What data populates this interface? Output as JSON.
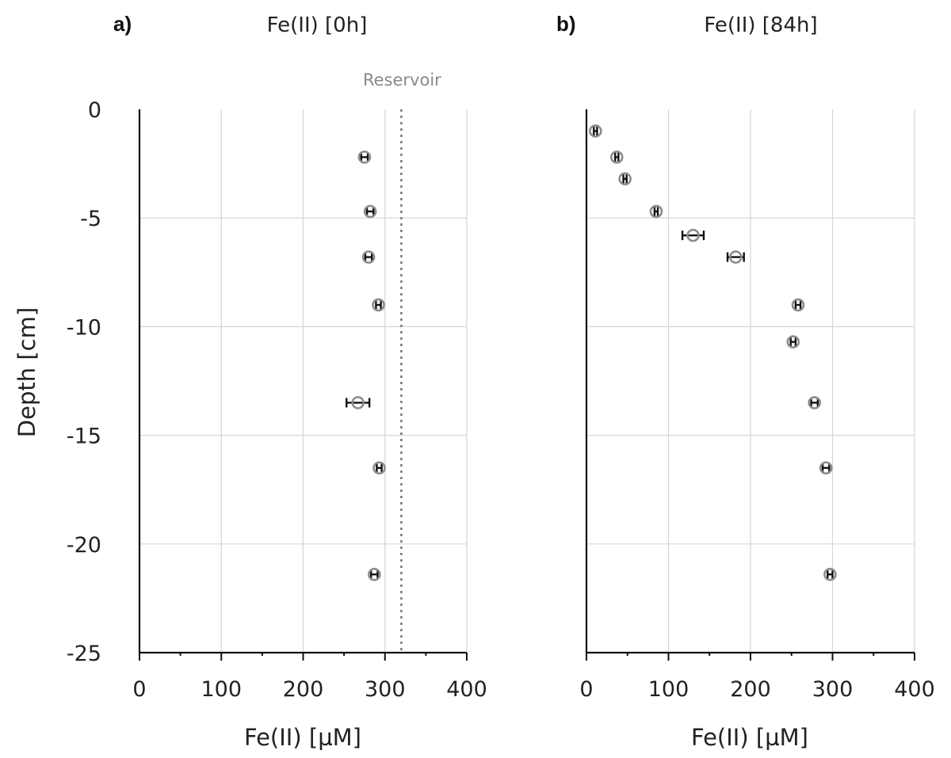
{
  "chart_data": [
    {
      "type": "scatter",
      "panel_label": "a)",
      "title": "Fe(II)  [0h]",
      "xlabel": "Fe(II) [µM]",
      "ylabel": "Depth [cm]",
      "xlim": [
        0,
        400
      ],
      "ylim": [
        -25,
        0
      ],
      "xticks": [
        "0",
        "100",
        "200",
        "300",
        "400"
      ],
      "yticks": [
        "0",
        "-5",
        "-10",
        "-15",
        "-20",
        "-25"
      ],
      "grid": true,
      "reference_line": {
        "x": 320,
        "label": "Reservoir",
        "style": "dotted"
      },
      "points": [
        {
          "x": 275,
          "y": -2.2,
          "err": 4
        },
        {
          "x": 282,
          "y": -4.7,
          "err": 4
        },
        {
          "x": 280,
          "y": -6.8,
          "err": 4
        },
        {
          "x": 292,
          "y": -9.0,
          "err": 3
        },
        {
          "x": 267,
          "y": -13.5,
          "err": 14
        },
        {
          "x": 293,
          "y": -16.5,
          "err": 3
        },
        {
          "x": 287,
          "y": -21.4,
          "err": 4
        }
      ]
    },
    {
      "type": "scatter",
      "panel_label": "b)",
      "title": "Fe(II)  [84h]",
      "xlabel": "Fe(II) [µM]",
      "ylabel": "",
      "xlim": [
        0,
        400
      ],
      "ylim": [
        -25,
        0
      ],
      "xticks": [
        "0",
        "100",
        "200",
        "300",
        "400"
      ],
      "grid": true,
      "points": [
        {
          "x": 11,
          "y": -1.0,
          "err": 2
        },
        {
          "x": 37,
          "y": -2.2,
          "err": 2
        },
        {
          "x": 47,
          "y": -3.2,
          "err": 2
        },
        {
          "x": 85,
          "y": -4.7,
          "err": 2
        },
        {
          "x": 130,
          "y": -5.8,
          "err": 13
        },
        {
          "x": 182,
          "y": -6.8,
          "err": 10
        },
        {
          "x": 258,
          "y": -9.0,
          "err": 3
        },
        {
          "x": 252,
          "y": -10.7,
          "err": 3
        },
        {
          "x": 278,
          "y": -13.5,
          "err": 4
        },
        {
          "x": 292,
          "y": -16.5,
          "err": 4
        },
        {
          "x": 297,
          "y": -21.4,
          "err": 3
        }
      ]
    }
  ]
}
